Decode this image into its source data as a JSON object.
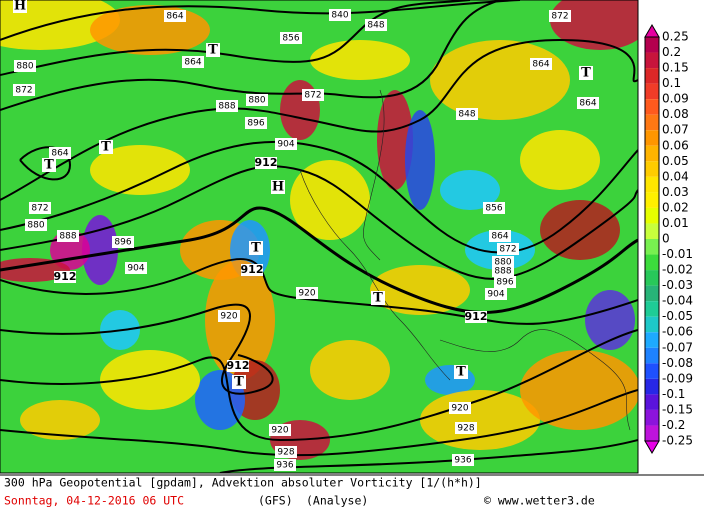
{
  "map": {
    "contour_labels": [
      "864",
      "840",
      "848",
      "872",
      "856",
      "864",
      "880",
      "872",
      "864",
      "864",
      "872",
      "880",
      "888",
      "896",
      "904",
      "848",
      "912",
      "864",
      "872",
      "880",
      "888",
      "896",
      "904",
      "912",
      "912",
      "856",
      "864",
      "872",
      "880",
      "888",
      "896",
      "904",
      "912",
      "920",
      "920",
      "912",
      "920",
      "928",
      "920",
      "928",
      "936",
      "936"
    ],
    "symbols": [
      "H",
      "T",
      "T",
      "T",
      "H",
      "T",
      "T",
      "T",
      "T",
      "T"
    ]
  },
  "legend": {
    "labels": [
      "0.25",
      "0.2",
      "0.15",
      "0.1",
      "0.09",
      "0.08",
      "0.07",
      "0.06",
      "0.05",
      "0.04",
      "0.03",
      "0.02",
      "0.01",
      "0",
      "-0.01",
      "-0.02",
      "-0.03",
      "-0.04",
      "-0.05",
      "-0.06",
      "-0.07",
      "-0.08",
      "-0.09",
      "-0.1",
      "-0.15",
      "-0.2",
      "-0.25"
    ]
  },
  "footer": {
    "line1": "300 hPa Geopotential [gpdam], Advektion absoluter Vorticity [1/(h*h)]",
    "date": "Sonntag, 04-12-2016  06 UTC",
    "model": "(GFS)",
    "run": "(Analyse)",
    "credit": "© www.wetter3.de"
  }
}
